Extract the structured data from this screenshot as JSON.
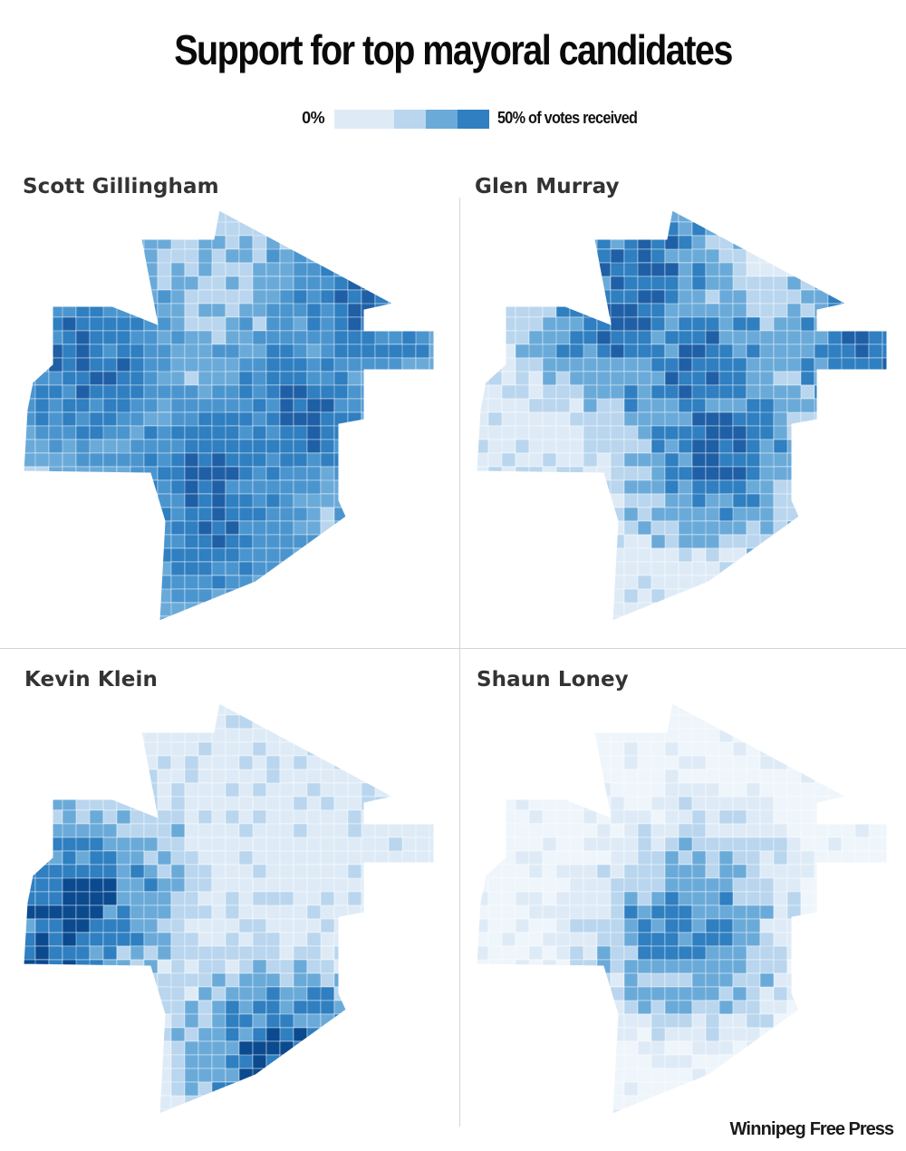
{
  "title": "Support for top mayoral candidates",
  "legend": {
    "low_label": "0%",
    "high_label": "50% of votes received",
    "colors": [
      "#deebf7",
      "#b9d6ee",
      "#6aaad9",
      "#2f7fc1"
    ]
  },
  "panels": [
    {
      "name": "Scott Gillingham",
      "strong_area": "west and south",
      "colors": [
        "#b9d6ee",
        "#6aaad9",
        "#4b95cf",
        "#2f7fc1",
        "#1f5fa6"
      ]
    },
    {
      "name": "Glen Murray",
      "strong_area": "north and downtown",
      "colors": [
        "#deebf7",
        "#b9d6ee",
        "#6aaad9",
        "#2f7fc1",
        "#1f5fa6"
      ]
    },
    {
      "name": "Kevin Klein",
      "strong_area": "southwest",
      "colors": [
        "#deebf7",
        "#b9d6ee",
        "#6aaad9",
        "#2f7fc1",
        "#0b4a8f"
      ]
    },
    {
      "name": "Shaun Loney",
      "strong_area": "inner city",
      "colors": [
        "#eef5fb",
        "#deebf7",
        "#b9d6ee",
        "#6aaad9",
        "#2f7fc1"
      ]
    }
  ],
  "credit": {
    "brand_a": "Winnipeg",
    "brand_b": "Free Press"
  }
}
